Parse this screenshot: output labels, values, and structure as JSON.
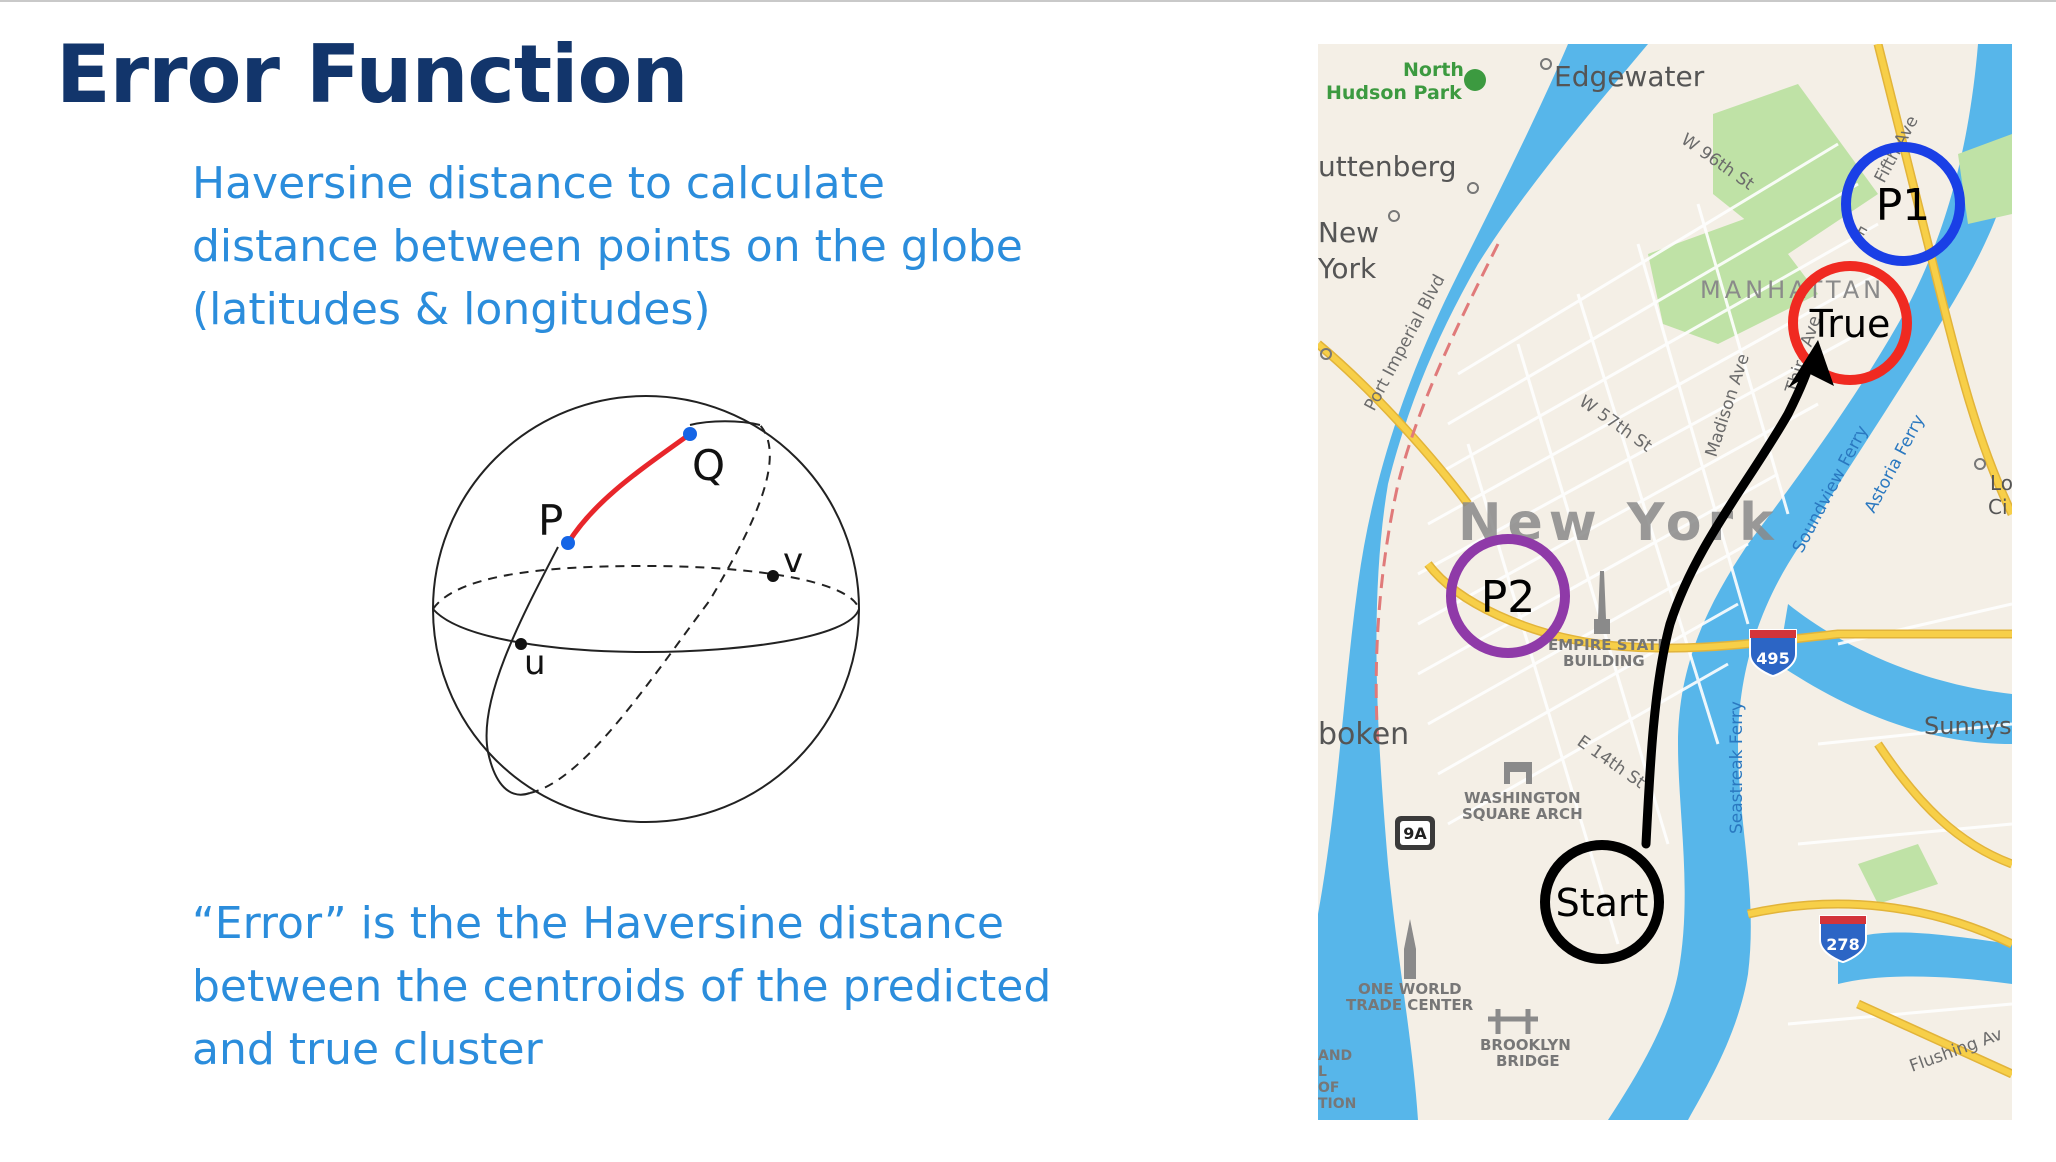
{
  "slide": {
    "title": "Error Function",
    "intro_lines": [
      "Haversine distance to calculate",
      "distance between points on the globe",
      "(latitudes & longitudes)"
    ],
    "conclusion_lines": [
      "“Error” is the the Haversine distance",
      "between the centroids of the predicted",
      "and true cluster"
    ]
  },
  "sphere": {
    "labels": {
      "p": "P",
      "q": "Q",
      "u": "u",
      "v": "v"
    },
    "colors": {
      "arc": "#e8262b",
      "point": "#1565e6"
    }
  },
  "map": {
    "markers": {
      "p1": {
        "label": "P1",
        "color": "#1a3fe6"
      },
      "true": {
        "label": "True",
        "color": "#f02a21"
      },
      "p2": {
        "label": "P2",
        "color": "#8f3aa8"
      },
      "start": {
        "label": "Start",
        "color": "#000000"
      }
    },
    "places": {
      "north_hudson_park_1": "North",
      "north_hudson_park_2": "Hudson Park",
      "edgewater": "Edgewater",
      "guttenberg": "uttenberg",
      "west_new_york_1": "New",
      "west_new_york_2": "York",
      "manhattan": "MANHATTAN",
      "new_york": "New York",
      "hoboken": "boken",
      "empire_1": "EMPIRE STATE",
      "empire_2": "BUILDING",
      "washington_1": "WASHINGTON",
      "washington_2": "SQUARE ARCH",
      "wtc_1": "ONE WORLD",
      "wtc_2": "TRADE CENTER",
      "brooklyn_1": "BROOKLYN",
      "brooklyn_2": "BRIDGE",
      "sunnyside": "Sunnys",
      "lic_1": "Lo",
      "lic_2": "Ci",
      "liberty_1": "AND",
      "liberty_2": "L",
      "liberty_3": "OF",
      "liberty_4": "TION"
    },
    "streets": {
      "w96": "W 96th St",
      "fifth": "Fifth Ave",
      "east": "E",
      "port_imperial": "Port Imperial Blvd",
      "w57": "W 57th St",
      "madison": "Madison Ave",
      "third": "Third Ave",
      "e14": "E 14th St",
      "soundview": "Soundview Ferry",
      "astoria": "Astoria Ferry",
      "seastreak": "Seastreak Ferry",
      "flushing": "Flushing Av"
    },
    "shields": {
      "i495": "495",
      "i278": "278",
      "r9a": "9A"
    },
    "colors": {
      "water": "#57b6ea",
      "land": "#f4efe6",
      "park": "#bfe2a6",
      "road": "#f7cf48",
      "road_edge": "#e2b43a",
      "street": "#ffffff",
      "label": "#6b6b6b",
      "interstate": "#2c65c5"
    }
  }
}
